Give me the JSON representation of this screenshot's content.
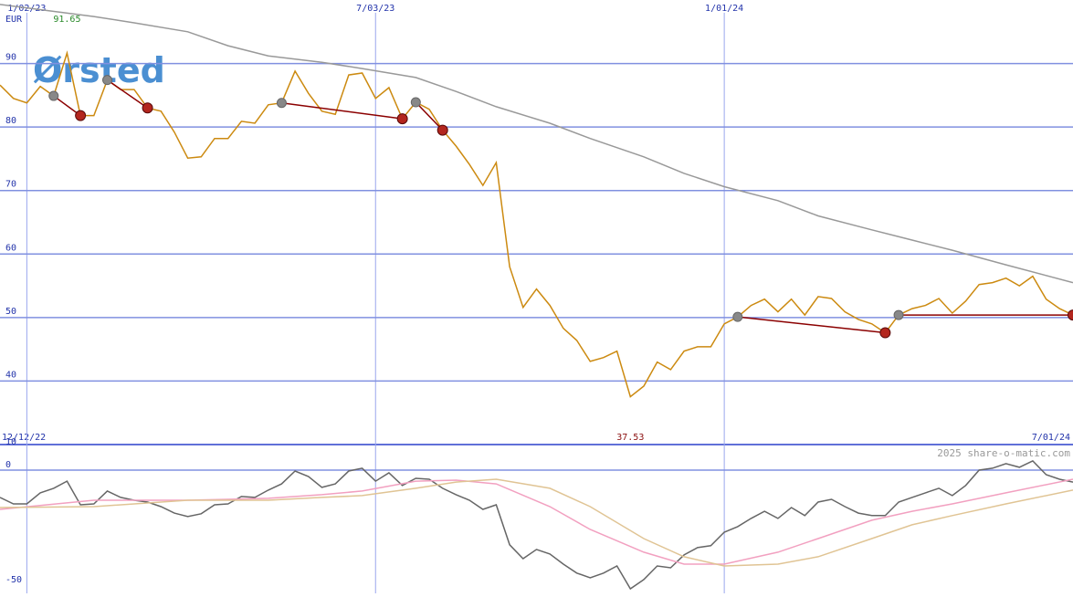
{
  "chart_data": [
    {
      "type": "line",
      "logo": "Ørsted",
      "y_unit": "EUR",
      "xlim": [
        "12/19/22",
        "7/01/24"
      ],
      "xticks": [
        "1/02/23",
        "7/03/23",
        "1/01/24"
      ],
      "range_labels": [
        "12/12/22",
        "7/01/24"
      ],
      "ylim": [
        30,
        100
      ],
      "yticks": [
        40,
        50,
        60,
        70,
        80,
        90
      ],
      "grid": true,
      "x": [
        "12/19/22",
        "12/26/22",
        "1/02/23",
        "1/09/23",
        "1/16/23",
        "1/23/23",
        "1/30/23",
        "2/06/23",
        "2/13/23",
        "2/20/23",
        "2/27/23",
        "3/06/23",
        "3/13/23",
        "3/20/23",
        "3/27/23",
        "4/03/23",
        "4/10/23",
        "4/17/23",
        "4/24/23",
        "5/01/23",
        "5/08/23",
        "5/15/23",
        "5/22/23",
        "5/29/23",
        "6/05/23",
        "6/12/23",
        "6/19/23",
        "6/26/23",
        "7/03/23",
        "7/10/23",
        "7/17/23",
        "7/24/23",
        "7/31/23",
        "8/07/23",
        "8/14/23",
        "8/21/23",
        "8/28/23",
        "9/04/23",
        "9/11/23",
        "9/18/23",
        "9/25/23",
        "10/02/23",
        "10/09/23",
        "10/16/23",
        "10/23/23",
        "10/30/23",
        "11/06/23",
        "11/13/23",
        "11/20/23",
        "11/27/23",
        "12/04/23",
        "12/11/23",
        "12/18/23",
        "12/25/23",
        "1/01/24",
        "1/08/24",
        "1/15/24",
        "1/22/24",
        "1/29/24",
        "2/05/24",
        "2/12/24",
        "2/19/24",
        "2/26/24",
        "3/04/24",
        "3/11/24",
        "3/18/24",
        "3/25/24",
        "4/01/24",
        "4/08/24",
        "4/15/24",
        "4/22/24",
        "4/29/24",
        "5/06/24",
        "5/13/24",
        "5/20/24",
        "5/27/24",
        "6/03/24",
        "6/10/24",
        "6/17/24",
        "6/24/24",
        "7/01/24"
      ],
      "series": [
        {
          "color": "#cc8a10",
          "values": [
            86.6,
            84.5,
            83.8,
            86.4,
            84.9,
            91.65,
            81.8,
            81.8,
            87.4,
            85.9,
            85.9,
            83.0,
            82.5,
            79.2,
            75.1,
            75.3,
            78.2,
            78.2,
            80.9,
            80.6,
            83.5,
            83.8,
            88.8,
            85.3,
            82.5,
            82.0,
            88.2,
            88.5,
            84.5,
            86.2,
            81.3,
            83.9,
            82.8,
            79.5,
            77.0,
            74.1,
            70.8,
            74.4,
            58.0,
            51.6,
            54.5,
            51.9,
            48.3,
            46.4,
            43.1,
            43.7,
            44.7,
            37.53,
            39.2,
            43.0,
            41.8,
            44.7,
            45.4,
            45.4,
            49.0,
            50.1,
            51.9,
            52.9,
            50.9,
            52.9,
            50.4,
            53.3,
            53.0,
            50.9,
            49.7,
            49.0,
            47.6,
            50.4,
            51.4,
            51.9,
            53.0,
            50.7,
            52.6,
            55.2,
            55.5,
            56.2,
            55.0,
            56.5,
            52.9,
            51.4,
            50.4
          ]
        },
        {
          "color": "#999999",
          "x": [
            "12/19/22",
            "2/06/23",
            "2/27/23",
            "3/27/23",
            "4/17/23",
            "5/08/23",
            "6/05/23",
            "6/26/23",
            "7/24/23",
            "8/14/23",
            "9/04/23",
            "10/02/23",
            "10/23/23",
            "11/20/23",
            "12/11/23",
            "1/01/24",
            "1/29/24",
            "2/19/24",
            "3/18/24",
            "4/08/24",
            "4/29/24",
            "5/27/24",
            "7/01/24"
          ],
          "values": [
            99.3,
            97.4,
            96.4,
            95.0,
            92.8,
            91.2,
            90.2,
            89.2,
            87.8,
            85.6,
            83.2,
            80.6,
            78.2,
            75.3,
            72.7,
            70.6,
            68.4,
            66.0,
            63.8,
            62.2,
            60.6,
            58.3,
            55.5
          ]
        }
      ],
      "high": 91.65,
      "high_date": "1/23/23",
      "high_color": "#2a8a2a",
      "low": 37.53,
      "low_date": "11/13/23",
      "low_color": "#8b1010",
      "signal_color": "#8b0000",
      "signals": [
        {
          "from": "1/16/23",
          "to": "1/30/23"
        },
        {
          "from": "2/13/23",
          "to": "3/06/23"
        },
        {
          "from": "5/15/23",
          "to": "7/17/23"
        },
        {
          "from": "7/24/23",
          "to": "8/07/23"
        },
        {
          "from": "1/08/24",
          "to": "3/25/24"
        },
        {
          "from": "4/01/24",
          "to": "7/01/24"
        }
      ]
    },
    {
      "type": "line",
      "watermark": "2025 share-o-matic.com",
      "xlim": [
        "12/19/22",
        "7/01/24"
      ],
      "ylim": [
        -53.6,
        10.7
      ],
      "yticks": [
        10,
        0,
        -50
      ],
      "series": [
        {
          "color": "#666666",
          "values": [
            -11.9,
            -14.7,
            -14.7,
            -9.9,
            -7.9,
            -4.8,
            -15.1,
            -14.7,
            -9.1,
            -11.9,
            -13.1,
            -13.9,
            -15.9,
            -18.7,
            -20.2,
            -19.0,
            -15.1,
            -14.7,
            -11.5,
            -11.9,
            -8.7,
            -6.0,
            -0.4,
            -2.8,
            -7.5,
            -6.0,
            -0.4,
            0.8,
            -4.8,
            -1.2,
            -6.7,
            -3.6,
            -4.0,
            -7.9,
            -10.7,
            -13.1,
            -17.1,
            -15.1,
            -32.5,
            -38.5,
            -34.5,
            -36.5,
            -40.9,
            -44.8,
            -46.8,
            -44.8,
            -41.7,
            -51.6,
            -47.6,
            -41.7,
            -42.5,
            -36.9,
            -33.7,
            -32.9,
            -27.0,
            -24.6,
            -21.0,
            -17.9,
            -21.0,
            -16.3,
            -19.8,
            -13.9,
            -12.7,
            -15.9,
            -18.7,
            -19.8,
            -19.8,
            -13.9,
            -11.9,
            -9.9,
            -7.9,
            -11.1,
            -6.7,
            0.0,
            0.8,
            2.8,
            1.2,
            4.0,
            -2.0,
            -4.0,
            -5.2
          ]
        },
        {
          "color": "#f2a0c0",
          "x": [
            "12/19/22",
            "2/06/23",
            "3/27/23",
            "5/08/23",
            "6/05/23",
            "6/26/23",
            "7/24/23",
            "8/14/23",
            "9/04/23",
            "10/02/23",
            "10/23/23",
            "11/20/23",
            "12/11/23",
            "1/01/24",
            "1/29/24",
            "2/19/24",
            "3/18/24",
            "4/08/24",
            "4/29/24",
            "5/27/24",
            "7/01/24"
          ],
          "values": [
            -17.1,
            -13.1,
            -13.1,
            -12.3,
            -10.7,
            -9.1,
            -4.8,
            -4.4,
            -6.0,
            -15.9,
            -25.8,
            -35.7,
            -40.9,
            -40.9,
            -35.7,
            -29.8,
            -21.8,
            -17.9,
            -14.7,
            -9.9,
            -4.0
          ]
        },
        {
          "color": "#e0c494",
          "x": [
            "12/19/22",
            "2/06/23",
            "3/27/23",
            "5/08/23",
            "6/05/23",
            "6/26/23",
            "7/24/23",
            "8/14/23",
            "9/04/23",
            "10/02/23",
            "10/23/23",
            "11/20/23",
            "12/11/23",
            "1/01/24",
            "1/29/24",
            "2/19/24",
            "3/18/24",
            "4/08/24",
            "4/29/24",
            "5/27/24",
            "7/01/24"
          ],
          "values": [
            -16.3,
            -15.9,
            -13.1,
            -13.1,
            -11.9,
            -11.1,
            -7.9,
            -5.2,
            -4.0,
            -7.9,
            -15.9,
            -29.8,
            -37.7,
            -41.7,
            -40.9,
            -37.7,
            -29.8,
            -23.8,
            -19.8,
            -14.7,
            -8.7
          ]
        }
      ]
    }
  ]
}
